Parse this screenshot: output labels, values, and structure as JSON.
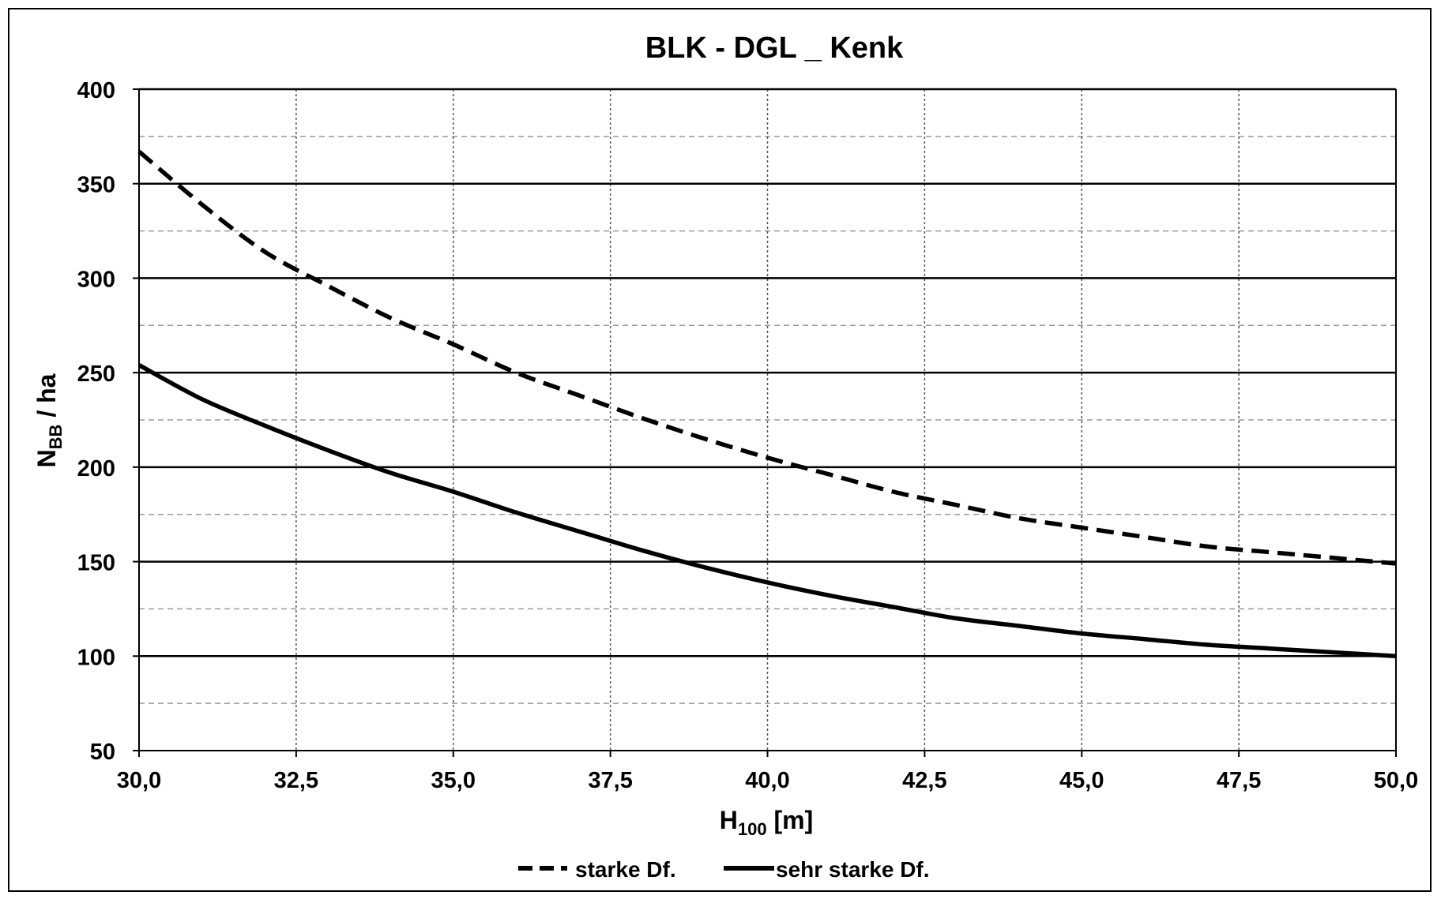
{
  "chart_data": {
    "type": "line",
    "title": "BLK - DGL _ Kenk",
    "xlabel": {
      "main": "H",
      "sub": "100",
      "unit": " [m]"
    },
    "ylabel": {
      "main": "N",
      "sub": "BB",
      "unit": " / ha"
    },
    "xlim": [
      30,
      50
    ],
    "ylim": [
      50,
      400
    ],
    "x_ticks": [
      30,
      32.5,
      35,
      37.5,
      40,
      42.5,
      45,
      47.5,
      50
    ],
    "x_tick_labels": [
      "30,0",
      "32,5",
      "35,0",
      "37,5",
      "40,0",
      "42,5",
      "45,0",
      "47,5",
      "50,0"
    ],
    "y_ticks": [
      50,
      100,
      150,
      200,
      250,
      300,
      350,
      400
    ],
    "y_tick_labels": [
      "50",
      "100",
      "150",
      "200",
      "250",
      "300",
      "350",
      "400"
    ],
    "y_minor_ticks": [
      75,
      125,
      175,
      225,
      275,
      325,
      375
    ],
    "grid": true,
    "legend_position": "bottom-center",
    "x": [
      30,
      31,
      32,
      33,
      34,
      35,
      36,
      37,
      38,
      39,
      40,
      41,
      42,
      43,
      44,
      45,
      46,
      47,
      48,
      49,
      50
    ],
    "series": [
      {
        "name": "starke Df.",
        "style": "dashed",
        "color": "#000000",
        "values": [
          367,
          339,
          314,
          296,
          279,
          265,
          250,
          238,
          226,
          215,
          205,
          196,
          187,
          180,
          173,
          168,
          163,
          158,
          155,
          152,
          149
        ]
      },
      {
        "name": "sehr starke Df.",
        "style": "solid",
        "color": "#000000",
        "values": [
          254,
          236,
          222,
          209,
          197,
          187,
          176,
          166,
          156,
          147,
          139,
          132,
          126,
          120,
          116,
          112,
          109,
          106,
          104,
          102,
          100
        ]
      }
    ]
  }
}
